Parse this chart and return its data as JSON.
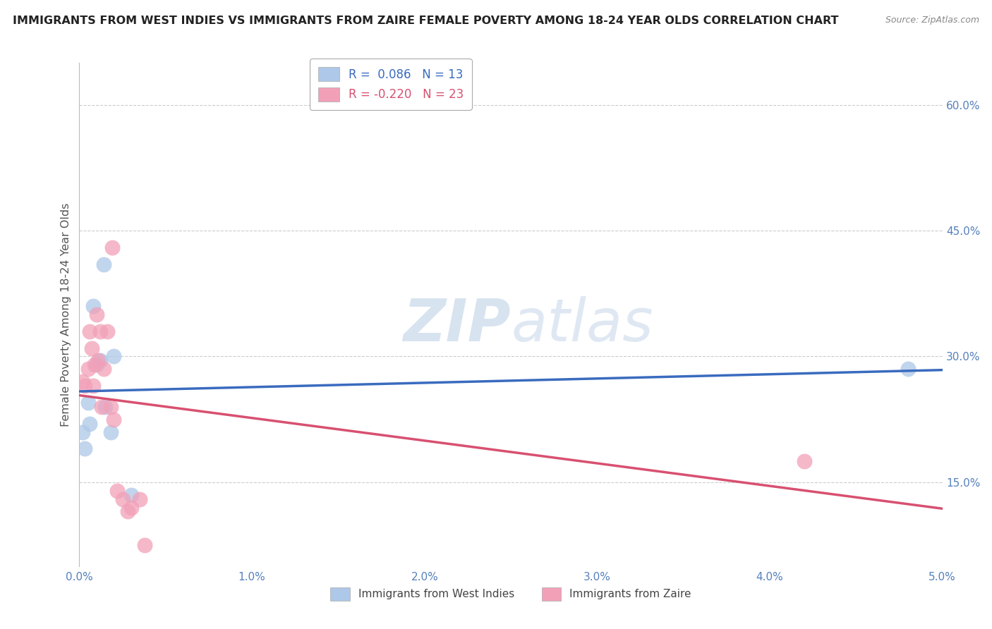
{
  "title": "IMMIGRANTS FROM WEST INDIES VS IMMIGRANTS FROM ZAIRE FEMALE POVERTY AMONG 18-24 YEAR OLDS CORRELATION CHART",
  "source": "Source: ZipAtlas.com",
  "ylabel": "Female Poverty Among 18-24 Year Olds",
  "west_indies": {
    "label": "Immigrants from West Indies",
    "R": 0.086,
    "N": 13,
    "color": "#adc8e8",
    "line_color": "#3a6bbf",
    "x": [
      0.0002,
      0.0003,
      0.0005,
      0.0006,
      0.0008,
      0.001,
      0.0012,
      0.0014,
      0.0015,
      0.0018,
      0.002,
      0.003,
      0.048
    ],
    "y": [
      0.21,
      0.19,
      0.245,
      0.22,
      0.36,
      0.29,
      0.295,
      0.41,
      0.24,
      0.21,
      0.3,
      0.135,
      0.285
    ]
  },
  "zaire": {
    "label": "Immigrants from Zaire",
    "R": -0.22,
    "N": 23,
    "color": "#f2a0b8",
    "line_color": "#d85070",
    "x": [
      0.0002,
      0.0003,
      0.0005,
      0.0006,
      0.0007,
      0.0008,
      0.0009,
      0.001,
      0.0011,
      0.0012,
      0.0013,
      0.0014,
      0.0016,
      0.0018,
      0.0019,
      0.002,
      0.0022,
      0.0025,
      0.0028,
      0.003,
      0.0035,
      0.0038,
      0.042
    ],
    "y": [
      0.27,
      0.265,
      0.285,
      0.33,
      0.31,
      0.265,
      0.29,
      0.35,
      0.295,
      0.33,
      0.24,
      0.285,
      0.33,
      0.24,
      0.43,
      0.225,
      0.14,
      0.13,
      0.115,
      0.12,
      0.13,
      0.075,
      0.175
    ]
  },
  "xlim": [
    0.0,
    0.05
  ],
  "ylim": [
    0.05,
    0.65
  ],
  "xticks": [
    0.0,
    0.01,
    0.02,
    0.03,
    0.04,
    0.05
  ],
  "xtick_labels": [
    "0.0%",
    "1.0%",
    "2.0%",
    "3.0%",
    "4.0%",
    "5.0%"
  ],
  "yticks": [
    0.15,
    0.3,
    0.45,
    0.6
  ],
  "ytick_labels": [
    "15.0%",
    "30.0%",
    "45.0%",
    "60.0%"
  ],
  "grid_color": "#cccccc",
  "background_color": "#ffffff",
  "watermark_zip": "ZIP",
  "watermark_atlas": "atlas",
  "watermark_color": "#ccd8ea"
}
